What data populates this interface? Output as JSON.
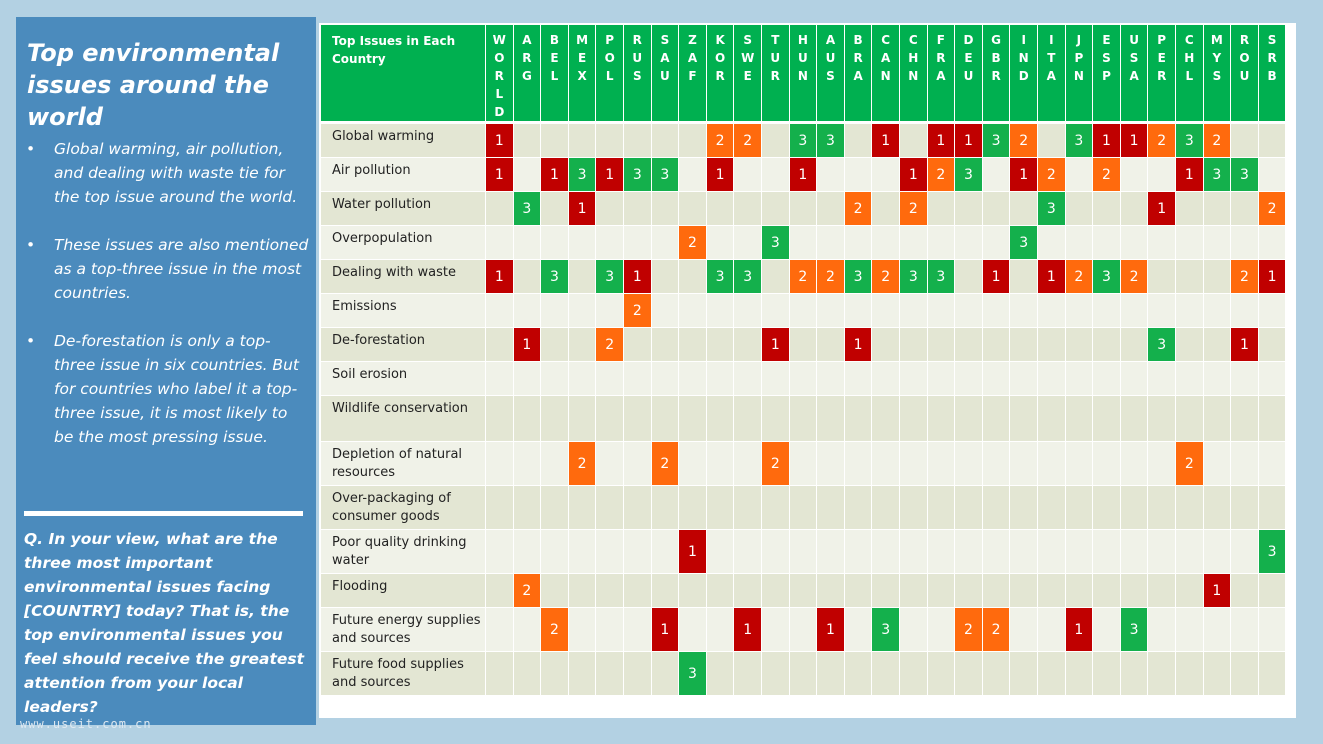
{
  "panel": {
    "title": "Top environmental issues around the world",
    "bullets": [
      "Global warming, air pollution, and dealing with waste tie for the top issue around the world.",
      "These issues are also mentioned as a top-three issue in the most countries.",
      "De-forestation is only a top-three issue in six countries. But for countries who label it a top-three issue, it is most likely to be the most pressing issue."
    ],
    "question": "Q. In your view, what are the three most important environmental issues facing [COUNTRY] today? That is, the top environmental issues you feel should receive the greatest attention from your local leaders?",
    "watermark": "www.useit.com.cn"
  },
  "colors": {
    "header_green": "#00b050",
    "rank_1": "#c00000",
    "rank_2": "#ff6a0d",
    "rank_3": "#14b04c"
  },
  "chart_data": {
    "type": "table",
    "title": "Top Issues in Each Country",
    "columns": [
      "WORLD",
      "ARG",
      "BEL",
      "MEX",
      "POL",
      "RUS",
      "SAU",
      "ZAF",
      "KOR",
      "SWE",
      "TUR",
      "HUN",
      "AUS",
      "BRA",
      "CAN",
      "CHN",
      "FRA",
      "DEU",
      "GBR",
      "IND",
      "ITA",
      "JPN",
      "ESP",
      "USA",
      "PER",
      "CHL",
      "MYS",
      "ROU",
      "SRB"
    ],
    "rows": [
      {
        "label": "Global warming",
        "values": [
          1,
          null,
          null,
          null,
          null,
          null,
          null,
          null,
          2,
          2,
          null,
          3,
          3,
          null,
          1,
          null,
          1,
          1,
          3,
          2,
          null,
          3,
          1,
          1,
          2,
          3,
          2,
          null,
          null
        ]
      },
      {
        "label": "Air pollution",
        "values": [
          1,
          null,
          1,
          3,
          1,
          3,
          3,
          null,
          1,
          null,
          null,
          1,
          null,
          null,
          null,
          1,
          2,
          3,
          null,
          1,
          2,
          null,
          2,
          null,
          null,
          1,
          3,
          3,
          null
        ]
      },
      {
        "label": "Water pollution",
        "values": [
          null,
          3,
          null,
          1,
          null,
          null,
          null,
          null,
          null,
          null,
          null,
          null,
          null,
          2,
          null,
          2,
          null,
          null,
          null,
          null,
          3,
          null,
          null,
          null,
          1,
          null,
          null,
          null,
          2
        ]
      },
      {
        "label": "Overpopulation",
        "values": [
          null,
          null,
          null,
          null,
          null,
          null,
          null,
          2,
          null,
          null,
          3,
          null,
          null,
          null,
          null,
          null,
          null,
          null,
          null,
          3,
          null,
          null,
          null,
          null,
          null,
          null,
          null,
          null,
          null
        ]
      },
      {
        "label": "Dealing with waste",
        "values": [
          1,
          null,
          3,
          null,
          3,
          1,
          null,
          null,
          3,
          3,
          null,
          2,
          2,
          3,
          2,
          3,
          3,
          null,
          1,
          null,
          1,
          2,
          3,
          2,
          null,
          null,
          null,
          2,
          1
        ]
      },
      {
        "label": "Emissions",
        "values": [
          null,
          null,
          null,
          null,
          null,
          2,
          null,
          null,
          null,
          null,
          null,
          null,
          null,
          null,
          null,
          null,
          null,
          null,
          null,
          null,
          null,
          null,
          null,
          null,
          null,
          null,
          null,
          null,
          null
        ]
      },
      {
        "label": "De-forestation",
        "values": [
          null,
          1,
          null,
          null,
          2,
          null,
          null,
          null,
          null,
          null,
          1,
          null,
          null,
          1,
          null,
          null,
          null,
          null,
          null,
          null,
          null,
          null,
          null,
          null,
          3,
          null,
          null,
          1,
          null
        ]
      },
      {
        "label": "Soil erosion",
        "values": [
          null,
          null,
          null,
          null,
          null,
          null,
          null,
          null,
          null,
          null,
          null,
          null,
          null,
          null,
          null,
          null,
          null,
          null,
          null,
          null,
          null,
          null,
          null,
          null,
          null,
          null,
          null,
          null,
          null
        ]
      },
      {
        "label": "Wildlife conservation",
        "values": [
          null,
          null,
          null,
          null,
          null,
          null,
          null,
          null,
          null,
          null,
          null,
          null,
          null,
          null,
          null,
          null,
          null,
          null,
          null,
          null,
          null,
          null,
          null,
          null,
          null,
          null,
          null,
          null,
          null
        ]
      },
      {
        "label": "Depletion of natural resources",
        "values": [
          null,
          null,
          null,
          2,
          null,
          null,
          2,
          null,
          null,
          null,
          2,
          null,
          null,
          null,
          null,
          null,
          null,
          null,
          null,
          null,
          null,
          null,
          null,
          null,
          null,
          2,
          null,
          null,
          null
        ]
      },
      {
        "label": "Over-packaging of consumer goods",
        "values": [
          null,
          null,
          null,
          null,
          null,
          null,
          null,
          null,
          null,
          null,
          null,
          null,
          null,
          null,
          null,
          null,
          null,
          null,
          null,
          null,
          null,
          null,
          null,
          null,
          null,
          null,
          null,
          null,
          null
        ]
      },
      {
        "label": "Poor quality drinking water",
        "values": [
          null,
          null,
          null,
          null,
          null,
          null,
          null,
          1,
          null,
          null,
          null,
          null,
          null,
          null,
          null,
          null,
          null,
          null,
          null,
          null,
          null,
          null,
          null,
          null,
          null,
          null,
          null,
          null,
          3
        ]
      },
      {
        "label": "Flooding",
        "values": [
          null,
          2,
          null,
          null,
          null,
          null,
          null,
          null,
          null,
          null,
          null,
          null,
          null,
          null,
          null,
          null,
          null,
          null,
          null,
          null,
          null,
          null,
          null,
          null,
          null,
          null,
          1,
          null,
          null
        ]
      },
      {
        "label": "Future energy supplies and sources",
        "values": [
          null,
          null,
          2,
          null,
          null,
          null,
          1,
          null,
          null,
          1,
          null,
          null,
          1,
          null,
          3,
          null,
          null,
          2,
          2,
          null,
          null,
          1,
          null,
          3,
          null,
          null,
          null,
          null,
          null
        ]
      },
      {
        "label": "Future food supplies and sources",
        "values": [
          null,
          null,
          null,
          null,
          null,
          null,
          null,
          3,
          null,
          null,
          null,
          null,
          null,
          null,
          null,
          null,
          null,
          null,
          null,
          null,
          null,
          null,
          null,
          null,
          null,
          null,
          null,
          null,
          null
        ]
      }
    ]
  }
}
